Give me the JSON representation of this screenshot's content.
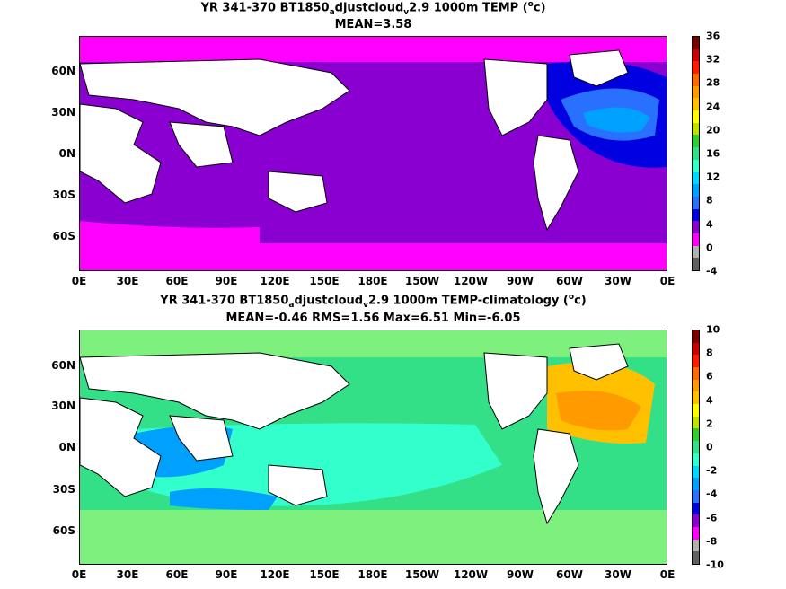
{
  "panels": [
    {
      "title_line1_a": "YR 341-370 BT1850",
      "title_line1_sub": "a",
      "title_line1_b": "djustcloud",
      "title_line1_sub2": "v",
      "title_line1_c": "2.9 1000m TEMP (",
      "title_line1_sup": "o",
      "title_line1_d": "c)",
      "title_line2": "MEAN=3.58",
      "colorbar": {
        "ticks": [
          "36",
          "32",
          "28",
          "24",
          "20",
          "16",
          "12",
          "8",
          "4",
          "0",
          "-4"
        ],
        "colors": [
          "#7a0000",
          "#c80000",
          "#ff1a00",
          "#ff6a00",
          "#ff9a00",
          "#ffc000",
          "#ffff00",
          "#c0e000",
          "#33cc33",
          "#33e088",
          "#33ffcc",
          "#00d8ff",
          "#00a0ff",
          "#2a70ff",
          "#0000e0",
          "#8a00d0",
          "#ff00ff",
          "#b0b0b0",
          "#606060"
        ]
      }
    },
    {
      "title_line1_a": "YR 341-370 BT1850",
      "title_line1_sub": "a",
      "title_line1_b": "djustcloud",
      "title_line1_sub2": "v",
      "title_line1_c": "2.9 1000m TEMP-climatology (",
      "title_line1_sup": "o",
      "title_line1_d": "c)",
      "title_line2": "MEAN=-0.46   RMS=1.56   Max=6.51   Min=-6.05",
      "colorbar": {
        "ticks": [
          "10",
          "8",
          "6",
          "4",
          "2",
          "0",
          "-2",
          "-4",
          "-6",
          "-8",
          "-10"
        ],
        "colors": [
          "#7a0000",
          "#c80000",
          "#ff1a00",
          "#ff6a00",
          "#ff9a00",
          "#ffc000",
          "#ffff00",
          "#c0e000",
          "#33cc33",
          "#33e088",
          "#33ffcc",
          "#00d8ff",
          "#00a0ff",
          "#2a70ff",
          "#0000e0",
          "#8a00d0",
          "#ff00ff",
          "#b0b0b0",
          "#606060"
        ]
      }
    }
  ],
  "lat_labels": [
    "60N",
    "30N",
    "0N",
    "30S",
    "60S"
  ],
  "lon_labels": [
    "0E",
    "30E",
    "60E",
    "90E",
    "120E",
    "150E",
    "180E",
    "150W",
    "120W",
    "90W",
    "60W",
    "30W",
    "0E"
  ]
}
